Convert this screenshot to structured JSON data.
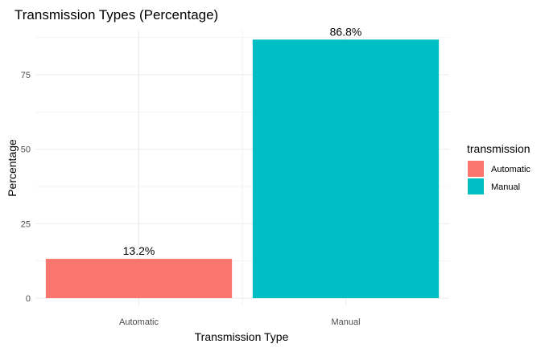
{
  "chart_data": {
    "type": "bar",
    "title": "Transmission Types (Percentage)",
    "xlabel": "Transmission Type",
    "ylabel": "Percentage",
    "categories": [
      "Automatic",
      "Manual"
    ],
    "values": [
      13.2,
      86.8
    ],
    "data_labels": [
      "13.2%",
      "86.8%"
    ],
    "ylim": [
      0,
      90
    ],
    "yticks": [
      0,
      25,
      50,
      75
    ],
    "ytick_labels": [
      "0",
      "25",
      "50",
      "75"
    ],
    "grid": true,
    "legend": {
      "title": "transmission",
      "position": "right",
      "entries": [
        {
          "label": "Automatic",
          "color": "#F8766D"
        },
        {
          "label": "Manual",
          "color": "#00BFC4"
        }
      ]
    },
    "colors": [
      "#F8766D",
      "#00BFC4"
    ]
  }
}
